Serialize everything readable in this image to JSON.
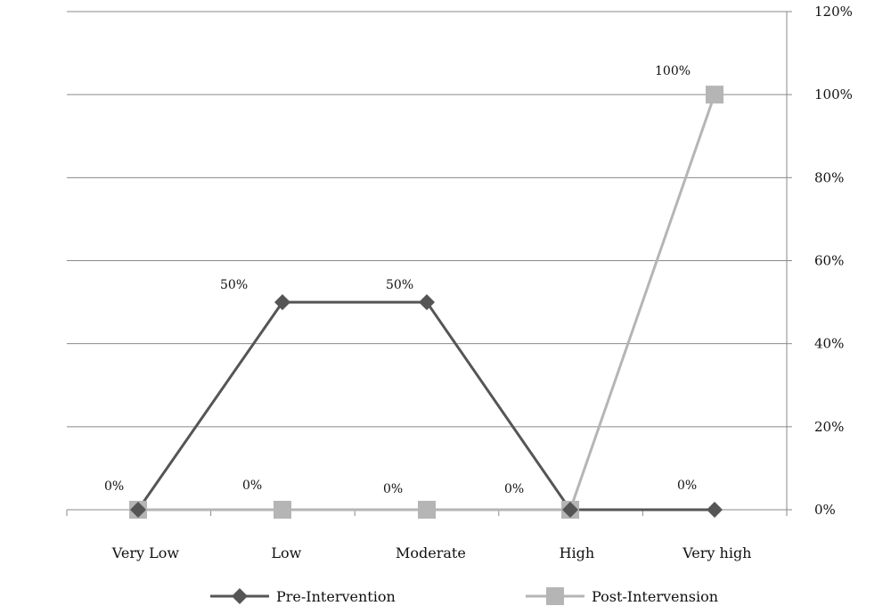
{
  "chart_data": {
    "type": "line",
    "title": "",
    "xlabel": "",
    "ylabel": "",
    "categories": [
      "Very Low",
      "Low",
      "Moderate",
      "High",
      "Very high"
    ],
    "ylim": [
      0,
      120
    ],
    "yticks": [
      "0%",
      "20%",
      "40%",
      "60%",
      "80%",
      "100%",
      "120%"
    ],
    "y_axis_side": "right",
    "grid": true,
    "legend_position": "bottom",
    "series": [
      {
        "name": "Pre-Intervention",
        "values": [
          0,
          50,
          50,
          0,
          0
        ],
        "labels": [
          "0%",
          "50%",
          "50%",
          "0%",
          "0%"
        ],
        "color": "#555555",
        "marker": "diamond"
      },
      {
        "name": "Post-Intervension",
        "values": [
          0,
          0,
          0,
          0,
          100
        ],
        "labels": [
          "0%",
          "0%",
          "0%",
          "0%",
          "100%"
        ],
        "color": "#b5b5b5",
        "marker": "square"
      }
    ]
  }
}
